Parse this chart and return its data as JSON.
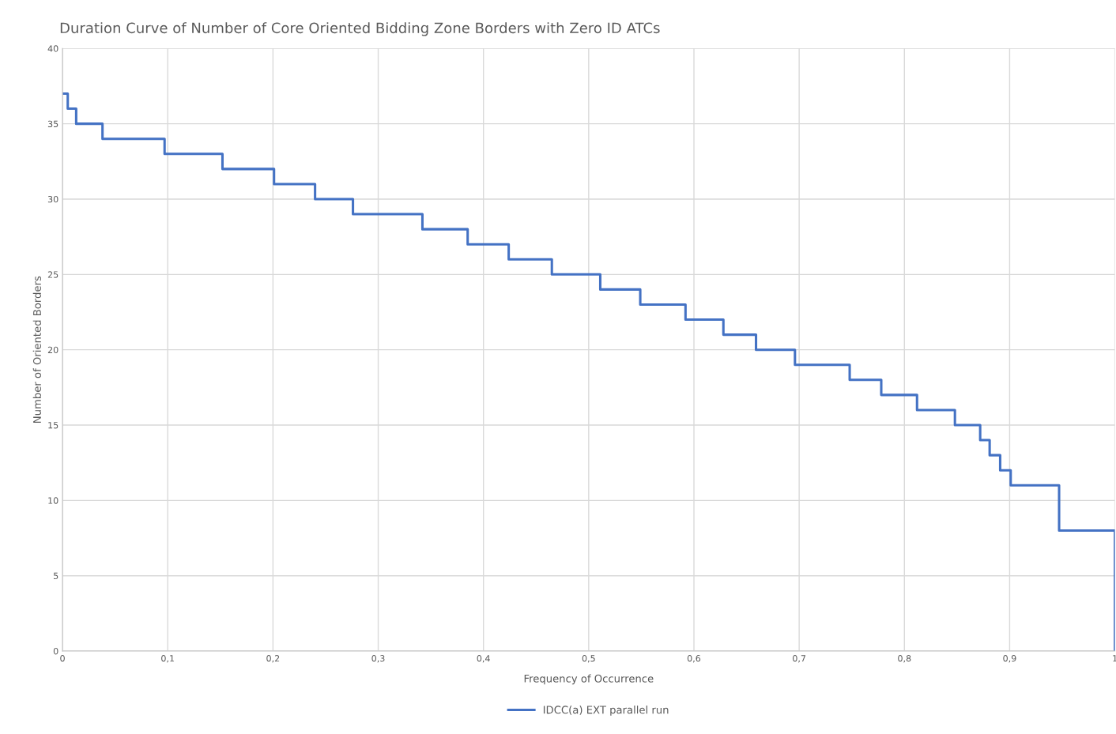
{
  "chart_data": {
    "type": "step",
    "title": "Duration Curve of Number of Core Oriented Bidding Zone Borders with Zero ID ATCs",
    "xlabel": "Frequency of Occurrence",
    "ylabel": "Number of Oriented Borders",
    "series": [
      {
        "name": "IDCC(a) EXT parallel run",
        "color": "#4472c4",
        "x": [
          0,
          0.005,
          0.013,
          0.038,
          0.097,
          0.152,
          0.201,
          0.24,
          0.276,
          0.342,
          0.385,
          0.424,
          0.465,
          0.511,
          0.549,
          0.592,
          0.628,
          0.659,
          0.696,
          0.748,
          0.778,
          0.812,
          0.848,
          0.872,
          0.881,
          0.891,
          0.901,
          0.947,
          1.0
        ],
        "values": [
          37,
          36,
          35,
          34,
          33,
          32,
          31,
          30,
          29,
          28,
          27,
          26,
          25,
          24,
          23,
          22,
          21,
          20,
          19,
          18,
          17,
          16,
          15,
          14,
          13,
          12,
          11,
          8,
          0
        ]
      }
    ],
    "xlim": [
      0,
      1
    ],
    "ylim": [
      0,
      40
    ],
    "xticks": [
      0,
      {
        "value": 0.1,
        "label": "0,1"
      },
      {
        "value": 0.2,
        "label": "0,2"
      },
      {
        "value": 0.3,
        "label": "0,3"
      },
      {
        "value": 0.4,
        "label": "0,4"
      },
      {
        "value": 0.5,
        "label": "0,5"
      },
      {
        "value": 0.6,
        "label": "0,6"
      },
      {
        "value": 0.7,
        "label": "0,7"
      },
      {
        "value": 0.8,
        "label": "0,8"
      },
      {
        "value": 0.9,
        "label": "0,9"
      },
      1
    ],
    "yticks": [
      0,
      5,
      10,
      15,
      20,
      25,
      30,
      35,
      40
    ],
    "grid": true,
    "legend": "bottom"
  }
}
